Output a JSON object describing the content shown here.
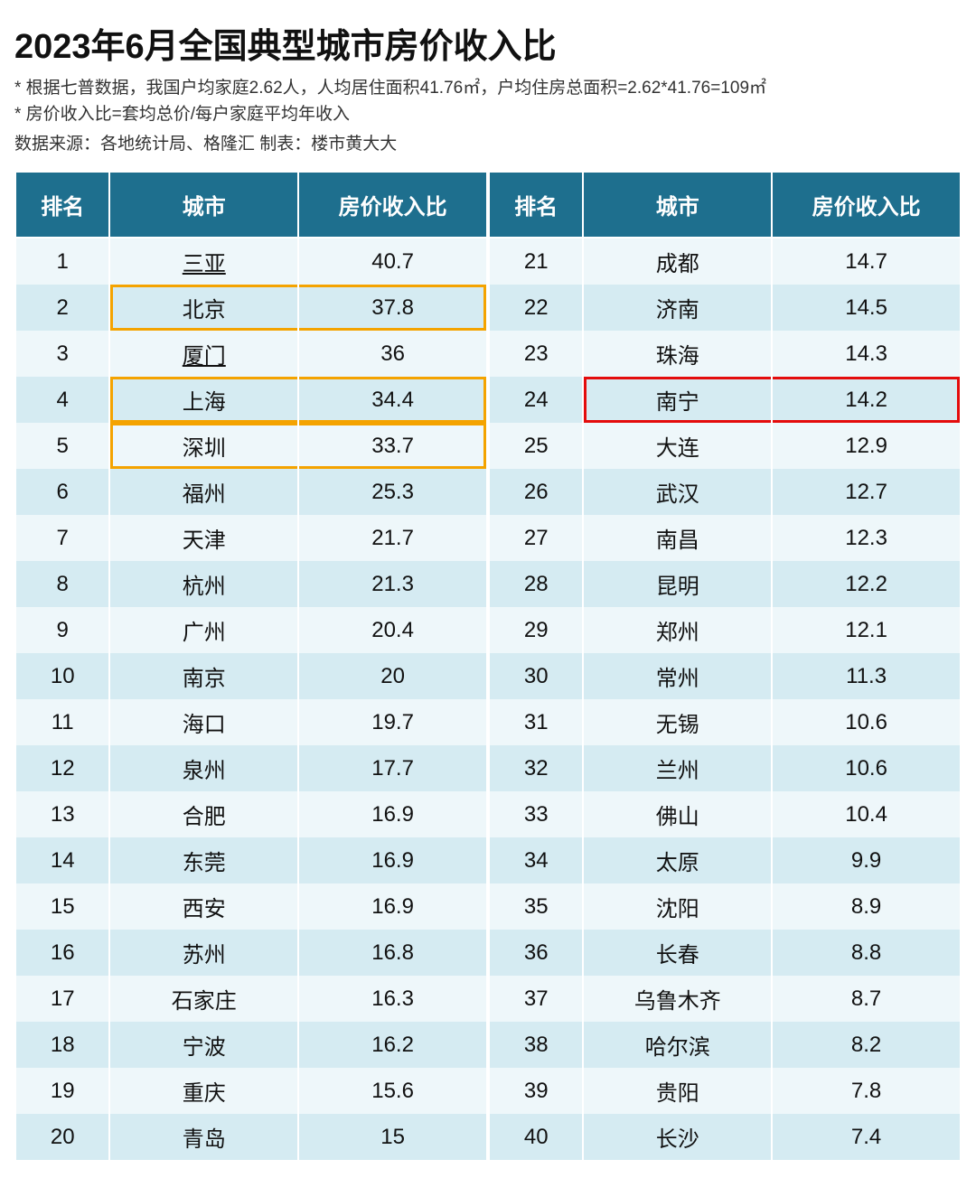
{
  "title": "2023年6月全国典型城市房价收入比",
  "notes": [
    "* 根据七普数据，我国户均家庭2.62人，人均居住面积41.76㎡，户均住房总面积=2.62*41.76=109㎡",
    "* 房价收入比=套均总价/每户家庭平均年收入"
  ],
  "source": "数据来源：各地统计局、格隆汇  制表：楼市黄大大",
  "columns": {
    "rank": "排名",
    "city": "城市",
    "ratio": "房价收入比"
  },
  "colors": {
    "header_bg": "#1e6f8e",
    "header_text": "#ffffff",
    "row_odd_bg": "#eef7fa",
    "row_even_bg": "#d5ebf2",
    "highlight_yellow": "#f4a300",
    "highlight_red": "#e40c0c",
    "text": "#111111",
    "background": "#ffffff"
  },
  "highlights": {
    "yellow_rows_left": [
      2,
      4,
      5
    ],
    "red_rows_right": [
      24
    ]
  },
  "left": [
    {
      "rank": "1",
      "city": "三亚",
      "ratio": "40.7",
      "underline": true
    },
    {
      "rank": "2",
      "city": "北京",
      "ratio": "37.8",
      "highlight": "yellow"
    },
    {
      "rank": "3",
      "city": "厦门",
      "ratio": "36",
      "underline": true
    },
    {
      "rank": "4",
      "city": "上海",
      "ratio": "34.4",
      "highlight": "yellow"
    },
    {
      "rank": "5",
      "city": "深圳",
      "ratio": "33.7",
      "highlight": "yellow"
    },
    {
      "rank": "6",
      "city": "福州",
      "ratio": "25.3"
    },
    {
      "rank": "7",
      "city": "天津",
      "ratio": "21.7"
    },
    {
      "rank": "8",
      "city": "杭州",
      "ratio": "21.3"
    },
    {
      "rank": "9",
      "city": "广州",
      "ratio": "20.4"
    },
    {
      "rank": "10",
      "city": "南京",
      "ratio": "20"
    },
    {
      "rank": "11",
      "city": "海口",
      "ratio": "19.7"
    },
    {
      "rank": "12",
      "city": "泉州",
      "ratio": "17.7"
    },
    {
      "rank": "13",
      "city": "合肥",
      "ratio": "16.9"
    },
    {
      "rank": "14",
      "city": "东莞",
      "ratio": "16.9"
    },
    {
      "rank": "15",
      "city": "西安",
      "ratio": "16.9"
    },
    {
      "rank": "16",
      "city": "苏州",
      "ratio": "16.8"
    },
    {
      "rank": "17",
      "city": "石家庄",
      "ratio": "16.3"
    },
    {
      "rank": "18",
      "city": "宁波",
      "ratio": "16.2"
    },
    {
      "rank": "19",
      "city": "重庆",
      "ratio": "15.6"
    },
    {
      "rank": "20",
      "city": "青岛",
      "ratio": "15"
    }
  ],
  "right": [
    {
      "rank": "21",
      "city": "成都",
      "ratio": "14.7"
    },
    {
      "rank": "22",
      "city": "济南",
      "ratio": "14.5"
    },
    {
      "rank": "23",
      "city": "珠海",
      "ratio": "14.3"
    },
    {
      "rank": "24",
      "city": "南宁",
      "ratio": "14.2",
      "highlight": "red"
    },
    {
      "rank": "25",
      "city": "大连",
      "ratio": "12.9"
    },
    {
      "rank": "26",
      "city": "武汉",
      "ratio": "12.7"
    },
    {
      "rank": "27",
      "city": "南昌",
      "ratio": "12.3"
    },
    {
      "rank": "28",
      "city": "昆明",
      "ratio": "12.2"
    },
    {
      "rank": "29",
      "city": "郑州",
      "ratio": "12.1"
    },
    {
      "rank": "30",
      "city": "常州",
      "ratio": "11.3"
    },
    {
      "rank": "31",
      "city": "无锡",
      "ratio": "10.6"
    },
    {
      "rank": "32",
      "city": "兰州",
      "ratio": "10.6"
    },
    {
      "rank": "33",
      "city": "佛山",
      "ratio": "10.4"
    },
    {
      "rank": "34",
      "city": "太原",
      "ratio": "9.9"
    },
    {
      "rank": "35",
      "city": "沈阳",
      "ratio": "8.9"
    },
    {
      "rank": "36",
      "city": "长春",
      "ratio": "8.8"
    },
    {
      "rank": "37",
      "city": "乌鲁木齐",
      "ratio": "8.7"
    },
    {
      "rank": "38",
      "city": "哈尔滨",
      "ratio": "8.2"
    },
    {
      "rank": "39",
      "city": "贵阳",
      "ratio": "7.8"
    },
    {
      "rank": "40",
      "city": "长沙",
      "ratio": "7.4"
    }
  ]
}
